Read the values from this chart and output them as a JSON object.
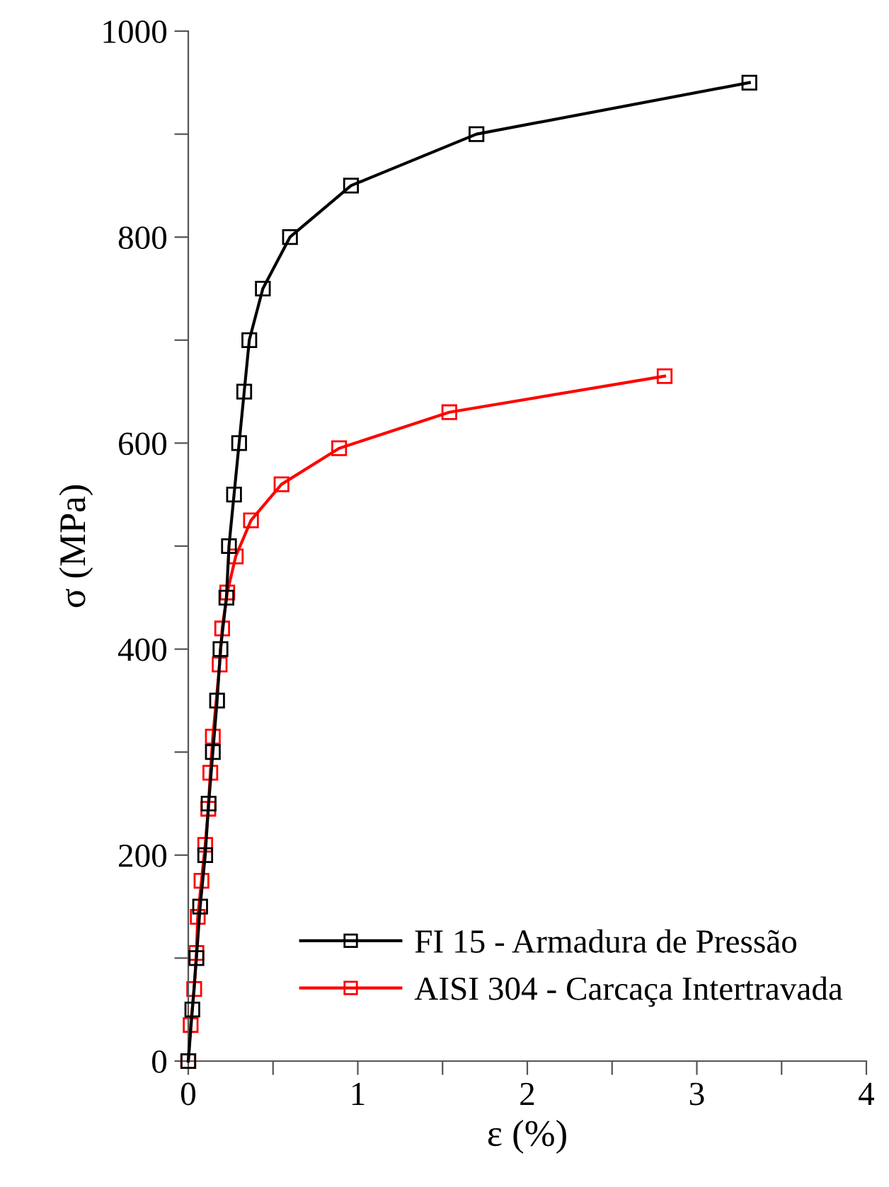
{
  "chart_data": {
    "type": "line",
    "xlabel": "ε (%)",
    "ylabel": "σ (MPa)",
    "xlim": [
      0,
      4
    ],
    "ylim": [
      0,
      1000
    ],
    "xticks": [
      0,
      {
        "value": 0.5,
        "label": null
      },
      1,
      {
        "value": 1.5,
        "label": null
      },
      2,
      {
        "value": 2.5,
        "label": null
      },
      3,
      {
        "value": 3.5,
        "label": null
      },
      4
    ],
    "yticks": [
      0,
      {
        "value": 100,
        "label": null
      },
      200,
      {
        "value": 300,
        "label": null
      },
      400,
      {
        "value": 500,
        "label": null
      },
      600,
      {
        "value": 700,
        "label": null
      },
      800,
      {
        "value": 900,
        "label": null
      },
      1000
    ],
    "marker": "square",
    "line_style": "solid",
    "grid": false,
    "legend": "bottom right",
    "series": [
      {
        "name": "FI 15 - Armadura de Pressão",
        "color": "#000000",
        "x": [
          0,
          0.024,
          0.048,
          0.07,
          0.1,
          0.12,
          0.145,
          0.17,
          0.19,
          0.225,
          0.24,
          0.27,
          0.3,
          0.33,
          0.36,
          0.44,
          0.6,
          0.96,
          1.7,
          3.31
        ],
        "values": [
          0,
          50,
          100,
          150,
          200,
          250,
          300,
          350,
          400,
          450,
          500,
          550,
          600,
          650,
          700,
          750,
          800,
          850,
          900,
          950
        ]
      },
      {
        "name": "AISI 304 - Carcaça Intertravada",
        "color": "#ff0000",
        "x": [
          0,
          0.014,
          0.035,
          0.048,
          0.056,
          0.078,
          0.1,
          0.118,
          0.13,
          0.145,
          0.185,
          0.2,
          0.23,
          0.28,
          0.37,
          0.55,
          0.89,
          1.54,
          2.81
        ],
        "values": [
          0,
          35,
          70,
          105,
          140,
          175,
          210,
          245,
          280,
          315,
          385,
          420,
          455,
          490,
          525,
          560,
          595,
          630,
          665
        ]
      }
    ]
  }
}
